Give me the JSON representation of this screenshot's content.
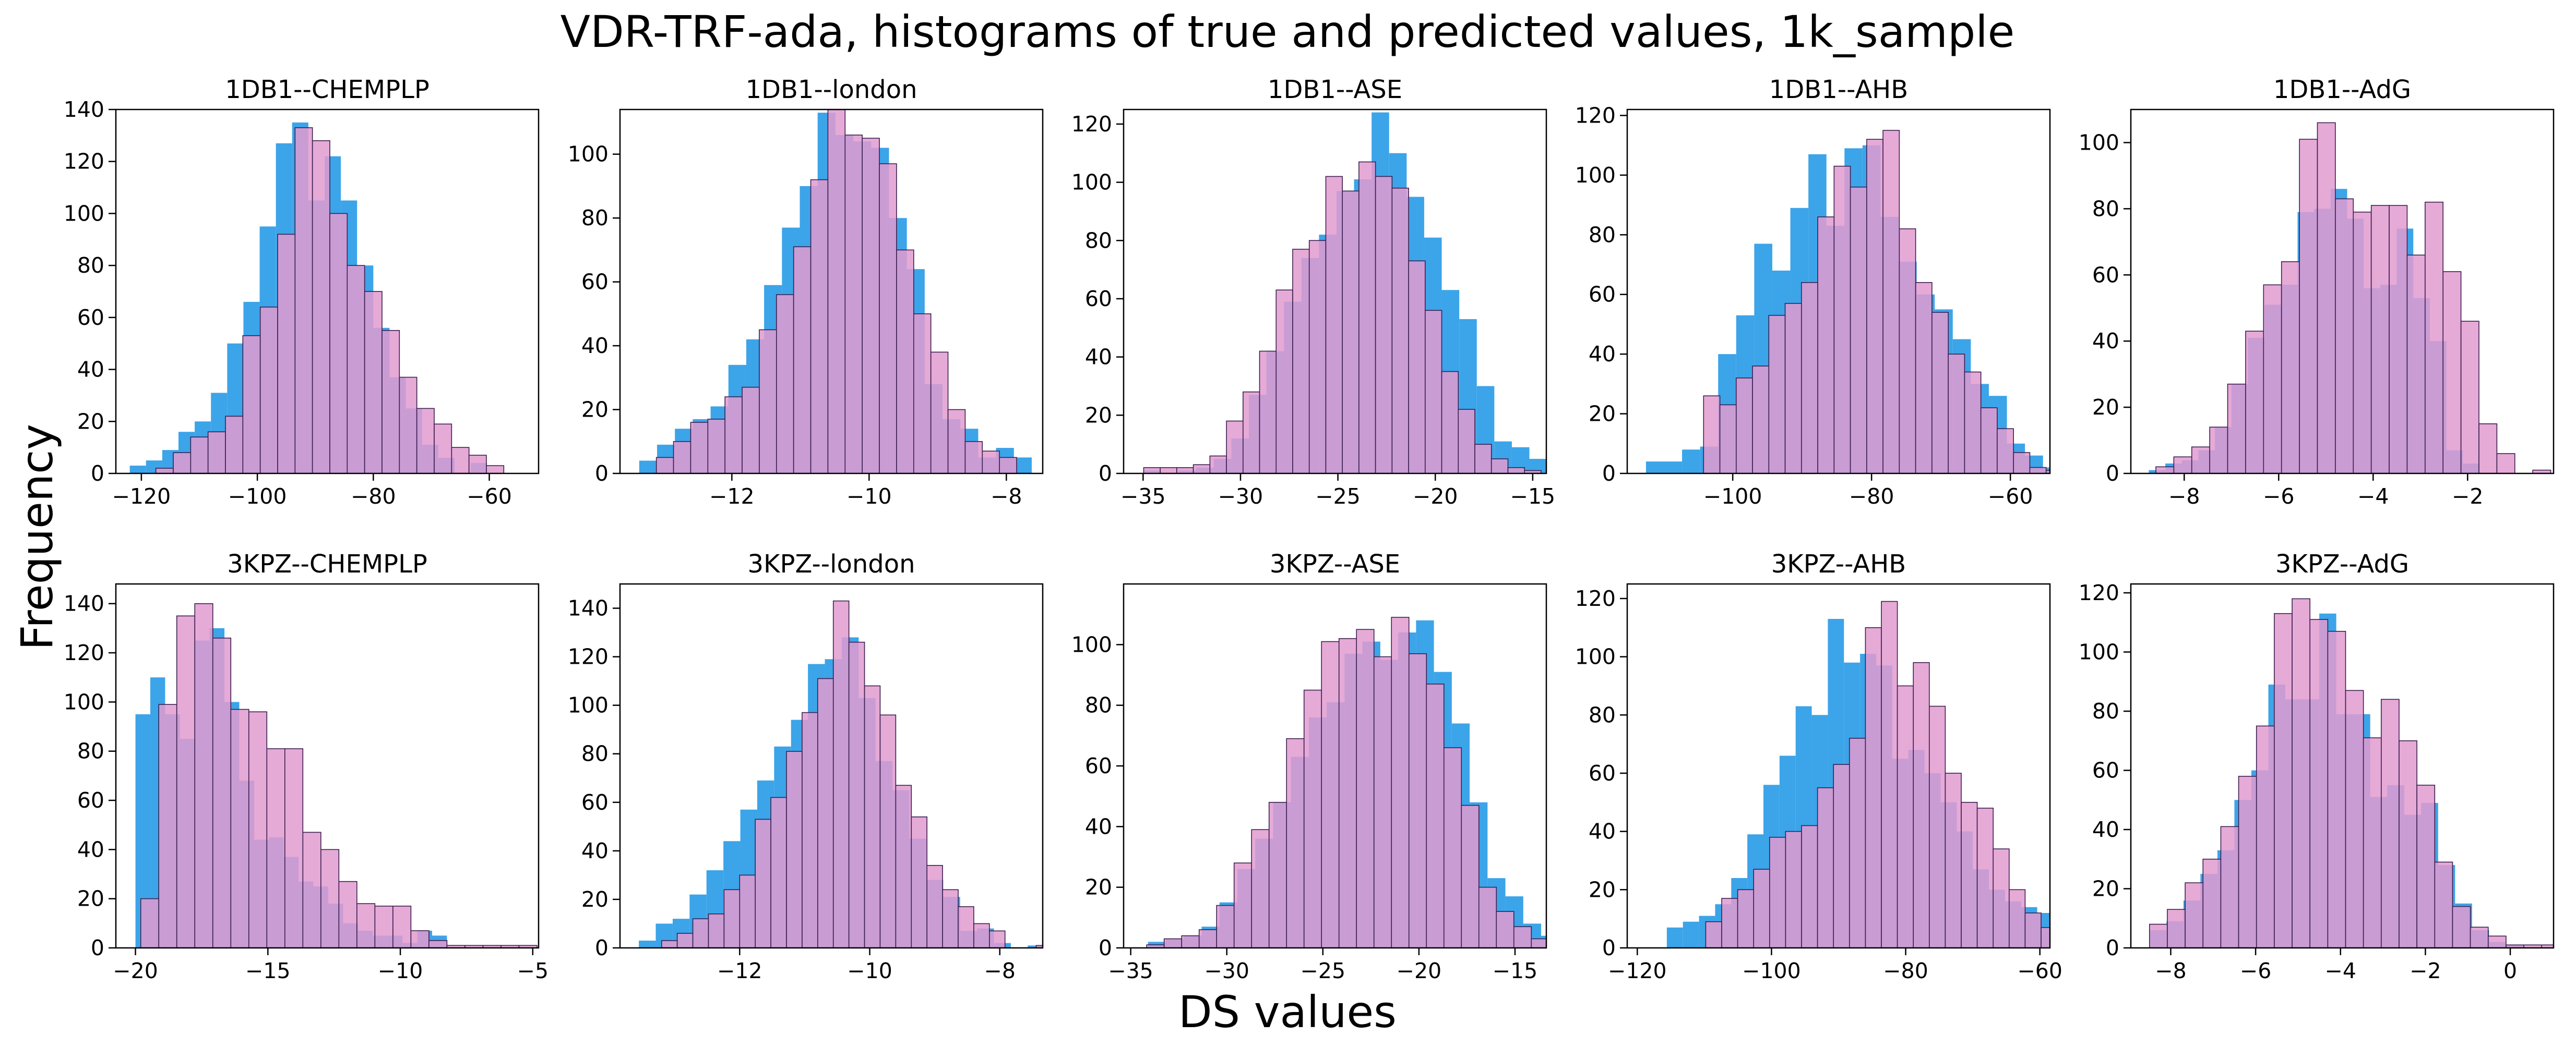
{
  "figure": {
    "title": "VDR-TRF-ada, histograms of true and predicted values, 1k_sample",
    "xlabel": "DS values",
    "ylabel": "Frequency"
  },
  "colors": {
    "true_fill": "#3ca4e9",
    "pred_fill": "#e29bd0",
    "pred_edge": "#3b2050",
    "axes": "#000000"
  },
  "chart_data": [
    {
      "type": "bar",
      "title": "1DB1--CHEMPLP",
      "xlim": [
        -124.4,
        -51.5
      ],
      "xticks": [
        -120,
        -100,
        -80,
        -60
      ],
      "ylim": [
        0,
        140
      ],
      "yticks": [
        0,
        20,
        40,
        60,
        80,
        100,
        120,
        140
      ],
      "true_series": {
        "start": -122.0,
        "width": 2.8,
        "values": [
          3,
          5,
          9,
          16,
          20,
          31,
          50,
          66,
          95,
          127,
          135,
          105,
          122,
          105,
          80,
          56,
          37,
          25,
          11,
          6,
          0,
          4
        ]
      },
      "pred_series": {
        "start": -117.5,
        "width": 3.0,
        "values": [
          2,
          8,
          14,
          16,
          22,
          53,
          64,
          92,
          133,
          128,
          100,
          80,
          70,
          55,
          37,
          25,
          19,
          10,
          7,
          3,
          0
        ]
      }
    },
    {
      "type": "bar",
      "title": "1DB1--london",
      "xlim": [
        -13.63,
        -7.47
      ],
      "xticks": [
        -12,
        -10,
        -8
      ],
      "ylim": [
        0,
        114
      ],
      "yticks": [
        0,
        20,
        40,
        60,
        80,
        100
      ],
      "true_series": {
        "start": -13.35,
        "width": 0.26,
        "values": [
          4,
          9,
          14,
          17,
          21,
          34,
          42,
          59,
          77,
          90,
          113,
          106,
          104,
          102,
          80,
          64,
          28,
          17,
          14,
          5,
          8,
          5
        ]
      },
      "pred_series": {
        "start": -13.1,
        "width": 0.25,
        "values": [
          5,
          10,
          16,
          17,
          24,
          27,
          45,
          56,
          71,
          92,
          116,
          106,
          105,
          97,
          70,
          50,
          38,
          20,
          10,
          7,
          5
        ]
      }
    },
    {
      "type": "bar",
      "title": "1DB1--ASE",
      "xlim": [
        -36.0,
        -14.3
      ],
      "xticks": [
        -35,
        -30,
        -25,
        -20,
        -15
      ],
      "ylim": [
        0,
        125
      ],
      "yticks": [
        0,
        20,
        40,
        60,
        80,
        100,
        120
      ],
      "true_series": {
        "start": -34.97,
        "width": 0.9,
        "values": [
          1,
          0,
          1,
          2,
          5,
          12,
          27,
          42,
          59,
          74,
          82,
          97,
          101,
          124,
          110,
          95,
          81,
          63,
          53,
          30,
          11,
          9,
          5,
          3
        ]
      },
      "pred_series": {
        "start": -34.97,
        "width": 0.85,
        "values": [
          2,
          2,
          2,
          3,
          6,
          18,
          28,
          42,
          63,
          77,
          80,
          102,
          97,
          107,
          102,
          98,
          73,
          56,
          35,
          22,
          10,
          5,
          2,
          1
        ]
      }
    },
    {
      "type": "bar",
      "title": "1DB1--AHB",
      "xlim": [
        -115.2,
        -54.3
      ],
      "xticks": [
        -100,
        -80,
        -60
      ],
      "ylim": [
        0,
        122
      ],
      "yticks": [
        0,
        20,
        40,
        60,
        80,
        100,
        120
      ],
      "true_series": {
        "start": -112.5,
        "width": 2.6,
        "values": [
          4,
          4,
          8,
          9,
          40,
          53,
          77,
          68,
          89,
          107,
          83,
          109,
          110,
          86,
          71,
          60,
          55,
          45,
          30,
          26,
          10,
          6,
          2
        ]
      },
      "pred_series": {
        "start": -104.2,
        "width": 2.35,
        "values": [
          26,
          23,
          32,
          36,
          53,
          57,
          64,
          86,
          103,
          96,
          112,
          115,
          82,
          64,
          54,
          40,
          34,
          22,
          15,
          7,
          2,
          1
        ]
      }
    },
    {
      "type": "bar",
      "title": "1DB1--AdG",
      "xlim": [
        -9.13,
        -0.18
      ],
      "xticks": [
        -8,
        -6,
        -4,
        -2
      ],
      "ylim": [
        0,
        110
      ],
      "yticks": [
        0,
        20,
        40,
        60,
        80,
        100
      ],
      "true_series": {
        "start": -8.75,
        "width": 0.35,
        "values": [
          1,
          3,
          4,
          7,
          14,
          27,
          41,
          51,
          57,
          79,
          80,
          86,
          77,
          56,
          57,
          74,
          53,
          40,
          7,
          3
        ]
      },
      "pred_series": {
        "start": -8.6,
        "width": 0.38,
        "values": [
          2,
          5,
          8,
          14,
          27,
          43,
          57,
          64,
          101,
          106,
          83,
          79,
          81,
          81,
          66,
          82,
          61,
          46,
          15,
          6,
          0,
          1
        ]
      }
    },
    {
      "type": "bar",
      "title": "3KPZ--CHEMPLP",
      "xlim": [
        -20.74,
        -4.78
      ],
      "xticks": [
        -20,
        -15,
        -10,
        -5
      ],
      "ylim": [
        0,
        148
      ],
      "yticks": [
        0,
        20,
        40,
        60,
        80,
        100,
        120,
        140
      ],
      "true_series": {
        "start": -20.0,
        "width": 0.56,
        "values": [
          95,
          110,
          95,
          85,
          125,
          130,
          100,
          68,
          44,
          45,
          37,
          27,
          25,
          18,
          10,
          7,
          5,
          5,
          2,
          7,
          5,
          0
        ]
      },
      "pred_series": {
        "start": -19.8,
        "width": 0.68,
        "values": [
          20,
          99,
          135,
          140,
          126,
          97,
          96,
          81,
          81,
          47,
          40,
          27,
          18,
          17,
          17,
          7,
          3,
          1,
          1,
          1,
          1,
          1
        ]
      }
    },
    {
      "type": "bar",
      "title": "3KPZ--london",
      "xlim": [
        -13.84,
        -7.34
      ],
      "xticks": [
        -12,
        -10,
        -8
      ],
      "ylim": [
        0,
        150
      ],
      "yticks": [
        0,
        20,
        40,
        60,
        80,
        100,
        120,
        140
      ],
      "true_series": {
        "start": -13.55,
        "width": 0.26,
        "values": [
          3,
          10,
          12,
          22,
          32,
          44,
          57,
          69,
          83,
          94,
          117,
          119,
          128,
          103,
          77,
          65,
          45,
          28,
          21,
          7,
          8,
          2,
          0,
          1
        ]
      },
      "pred_series": {
        "start": -13.2,
        "width": 0.24,
        "values": [
          3,
          6,
          12,
          14,
          24,
          30,
          53,
          62,
          81,
          97,
          111,
          143,
          126,
          108,
          96,
          67,
          54,
          34,
          24,
          17,
          10,
          7,
          0,
          0,
          1
        ]
      }
    },
    {
      "type": "bar",
      "title": "3KPZ--ASE",
      "xlim": [
        -35.37,
        -13.37
      ],
      "xticks": [
        -35,
        -30,
        -25,
        -20,
        -15
      ],
      "ylim": [
        0,
        120
      ],
      "yticks": [
        0,
        20,
        40,
        60,
        80,
        100
      ],
      "true_series": {
        "start": -34.1,
        "width": 0.93,
        "values": [
          2,
          3,
          4,
          7,
          15,
          26,
          36,
          48,
          63,
          76,
          81,
          97,
          101,
          95,
          104,
          108,
          91,
          74,
          48,
          23,
          17,
          8,
          4
        ]
      },
      "pred_series": {
        "start": -34.17,
        "width": 0.91,
        "values": [
          1,
          3,
          4,
          6,
          14,
          28,
          39,
          48,
          69,
          85,
          101,
          102,
          105,
          96,
          109,
          97,
          87,
          66,
          47,
          20,
          12,
          7,
          3,
          2
        ]
      }
    },
    {
      "type": "bar",
      "title": "3KPZ--AHB",
      "xlim": [
        -121.5,
        -58.5
      ],
      "xticks": [
        -120,
        -100,
        -80,
        -60
      ],
      "ylim": [
        0,
        125
      ],
      "yticks": [
        0,
        20,
        40,
        60,
        80,
        100,
        120
      ],
      "true_series": {
        "start": -115.6,
        "width": 2.4,
        "values": [
          7,
          9,
          11,
          15,
          24,
          39,
          56,
          66,
          83,
          80,
          113,
          98,
          101,
          97,
          65,
          68,
          60,
          50,
          40,
          27,
          20,
          16,
          14,
          12,
          5,
          3
        ]
      },
      "pred_series": {
        "start": -109.8,
        "width": 2.38,
        "values": [
          9,
          17,
          20,
          27,
          38,
          40,
          42,
          55,
          63,
          72,
          110,
          119,
          90,
          98,
          83,
          60,
          50,
          48,
          34,
          20,
          12,
          7,
          4,
          2
        ]
      }
    },
    {
      "type": "bar",
      "title": "3KPZ--AdG",
      "xlim": [
        -8.94,
        1.02
      ],
      "xticks": [
        -8,
        -6,
        -4,
        -2,
        0
      ],
      "ylim": [
        0,
        123
      ],
      "yticks": [
        0,
        20,
        40,
        60,
        80,
        100,
        120
      ],
      "true_series": {
        "start": -8.5,
        "width": 0.4,
        "values": [
          6,
          9,
          16,
          25,
          33,
          50,
          60,
          89,
          84,
          84,
          113,
          79,
          79,
          51,
          55,
          45,
          49,
          28,
          15,
          6,
          2,
          1
        ]
      },
      "pred_series": {
        "start": -8.5,
        "width": 0.42,
        "values": [
          8,
          13,
          22,
          30,
          41,
          58,
          75,
          113,
          118,
          111,
          107,
          87,
          71,
          84,
          70,
          55,
          29,
          14,
          7,
          4,
          1,
          1,
          1
        ]
      }
    }
  ]
}
